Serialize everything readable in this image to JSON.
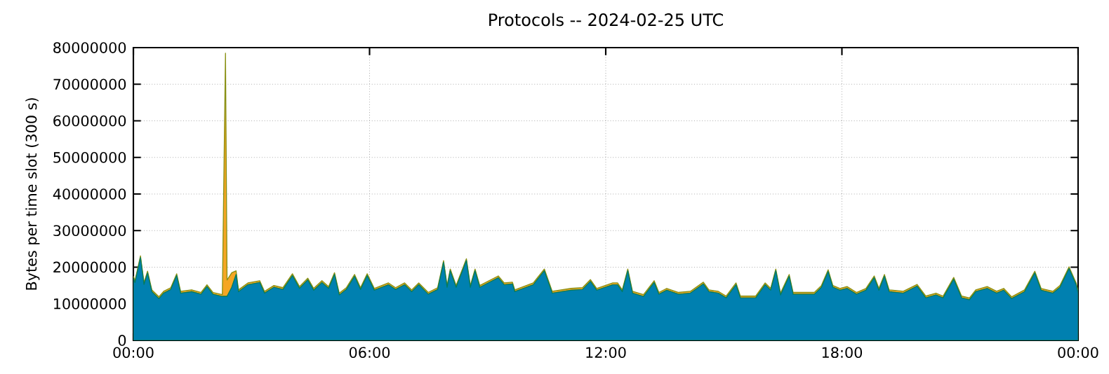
{
  "chart_data": {
    "type": "area",
    "title": "Protocols -- 2024-02-25 UTC",
    "ylabel": "Bytes per time slot (300 s)",
    "stacked": true,
    "grid": true,
    "x": [
      0,
      0.04,
      0.18,
      0.27,
      0.36,
      0.47,
      0.65,
      0.77,
      0.95,
      1.1,
      1.2,
      1.48,
      1.72,
      1.87,
      2.02,
      2.26,
      2.34,
      2.38,
      2.5,
      2.61,
      2.67,
      2.91,
      3.21,
      3.33,
      3.57,
      3.8,
      4.04,
      4.22,
      4.43,
      4.58,
      4.79,
      4.96,
      5.11,
      5.23,
      5.41,
      5.62,
      5.77,
      5.94,
      6.12,
      6.48,
      6.66,
      6.89,
      7.07,
      7.25,
      7.49,
      7.73,
      7.88,
      7.97,
      8.05,
      8.2,
      8.46,
      8.56,
      8.68,
      8.8,
      9.27,
      9.42,
      9.63,
      9.69,
      10.16,
      10.44,
      10.64,
      11.12,
      11.41,
      11.61,
      11.77,
      12.18,
      12.3,
      12.42,
      12.56,
      12.68,
      12.96,
      13.23,
      13.35,
      13.55,
      13.85,
      14.15,
      14.48,
      14.62,
      14.86,
      15.06,
      15.31,
      15.42,
      15.81,
      16.05,
      16.19,
      16.32,
      16.44,
      16.66,
      16.76,
      17.3,
      17.48,
      17.65,
      17.77,
      17.95,
      18.13,
      18.37,
      18.61,
      18.82,
      18.94,
      19.08,
      19.2,
      19.56,
      19.91,
      20.13,
      20.39,
      20.57,
      20.84,
      21.04,
      21.24,
      21.4,
      21.69,
      21.93,
      22.11,
      22.31,
      22.64,
      22.9,
      23.06,
      23.36,
      23.54,
      23.77,
      23.95,
      24
    ],
    "series": [
      {
        "color": "#0080b0",
        "values": [
          17000000,
          15800000,
          22600000,
          15300000,
          18400000,
          13300000,
          11400000,
          12900000,
          13900000,
          17700000,
          12900000,
          13300000,
          12600000,
          14700000,
          12600000,
          12000000,
          12000000,
          12000000,
          14500000,
          18000000,
          13300000,
          15200000,
          15800000,
          12900000,
          14500000,
          13900000,
          17700000,
          14200000,
          16500000,
          13700000,
          15800000,
          14200000,
          18000000,
          12400000,
          13900000,
          17500000,
          13900000,
          17700000,
          13700000,
          15200000,
          13900000,
          15200000,
          13300000,
          15200000,
          12600000,
          13900000,
          21300000,
          14500000,
          19000000,
          14500000,
          21800000,
          14500000,
          19000000,
          14500000,
          17100000,
          15200000,
          15400000,
          13300000,
          15200000,
          19000000,
          12900000,
          13700000,
          13900000,
          16100000,
          13700000,
          15200000,
          15200000,
          13300000,
          19000000,
          12900000,
          12000000,
          15800000,
          12600000,
          13700000,
          12600000,
          12900000,
          15400000,
          13300000,
          12900000,
          11600000,
          15200000,
          11600000,
          11600000,
          15200000,
          13700000,
          19000000,
          12400000,
          17500000,
          12600000,
          12600000,
          14500000,
          18800000,
          14500000,
          13700000,
          14200000,
          12600000,
          13700000,
          17100000,
          13700000,
          17500000,
          13300000,
          12900000,
          14800000,
          11600000,
          12400000,
          11600000,
          16700000,
          11600000,
          11100000,
          13300000,
          14200000,
          12900000,
          13700000,
          11400000,
          13300000,
          18400000,
          13700000,
          12900000,
          14500000,
          19600000,
          15200000,
          13000000
        ]
      },
      {
        "color": "#f5a623",
        "values": [
          500000,
          500000,
          500000,
          500000,
          500000,
          500000,
          500000,
          500000,
          500000,
          500000,
          500000,
          500000,
          500000,
          500000,
          500000,
          500000,
          66500000,
          4500000,
          4000000,
          1000000,
          500000,
          500000,
          500000,
          500000,
          500000,
          500000,
          500000,
          500000,
          500000,
          500000,
          500000,
          500000,
          500000,
          500000,
          500000,
          500000,
          500000,
          500000,
          500000,
          500000,
          500000,
          500000,
          500000,
          500000,
          500000,
          500000,
          500000,
          500000,
          500000,
          500000,
          500000,
          500000,
          500000,
          500000,
          500000,
          500000,
          500000,
          500000,
          500000,
          500000,
          500000,
          500000,
          500000,
          500000,
          500000,
          500000,
          500000,
          500000,
          500000,
          500000,
          500000,
          500000,
          500000,
          500000,
          500000,
          500000,
          500000,
          500000,
          500000,
          500000,
          500000,
          500000,
          500000,
          500000,
          500000,
          500000,
          500000,
          500000,
          500000,
          500000,
          500000,
          500000,
          500000,
          500000,
          500000,
          500000,
          500000,
          500000,
          500000,
          500000,
          500000,
          500000,
          500000,
          500000,
          500000,
          500000,
          500000,
          500000,
          500000,
          500000,
          500000,
          500000,
          500000,
          500000,
          500000,
          500000,
          500000,
          500000,
          500000,
          500000,
          500000,
          500000
        ]
      }
    ],
    "xlim": [
      0,
      24
    ],
    "ylim": [
      0,
      80000000
    ],
    "xticks": [
      {
        "value": 0,
        "label": "00:00"
      },
      {
        "value": 6,
        "label": "06:00"
      },
      {
        "value": 12,
        "label": "12:00"
      },
      {
        "value": 18,
        "label": "18:00"
      },
      {
        "value": 24,
        "label": "00:00"
      }
    ],
    "yticks": [
      0,
      10000000,
      20000000,
      30000000,
      40000000,
      50000000,
      60000000,
      70000000,
      80000000
    ]
  }
}
